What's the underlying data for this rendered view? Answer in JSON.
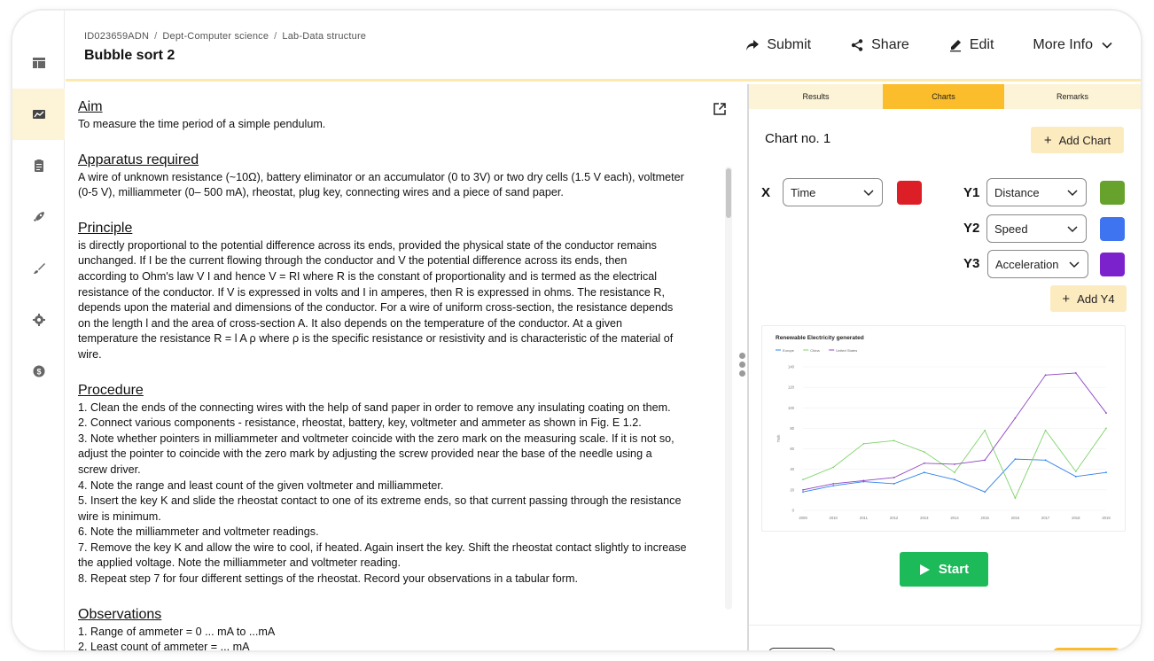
{
  "header": {
    "breadcrumbs": [
      "ID023659ADN",
      "Dept-Computer science",
      "Lab-Data structure"
    ],
    "title": "Bubble sort 2",
    "actions": {
      "submit": "Submit",
      "share": "Share",
      "edit": "Edit",
      "more_info": "More Info"
    }
  },
  "sidebar": {
    "items": [
      "layout-icon",
      "chart-line-icon",
      "clipboard-icon",
      "rocket-icon",
      "brush-icon",
      "settings-icon",
      "dollar-icon"
    ],
    "active_index": 1
  },
  "content": {
    "aim": {
      "heading": "Aim",
      "text": "To measure the time period of a simple pendulum."
    },
    "apparatus": {
      "heading": "Apparatus required",
      "text": "A wire of unknown resistance (~10Ω), battery eliminator or an accumulator (0 to 3V) or two dry cells (1.5 V each), voltmeter\n(0-5 V), milliammeter (0– 500 mA), rheostat, plug key, connecting wires and a piece of sand paper."
    },
    "principle": {
      "heading": "Principle",
      "text": "is directly proportional to the potential difference across its ends, provided the physical state of the conductor remains\nunchanged. If I be the current flowing through the conductor and V the potential difference across its ends, then\naccording to Ohm's law V I    and hence V = RI where R is the constant of proportionality and is termed as the electrical\nresistance of the conductor. If V is expressed in volts and I in amperes, then R is expressed in ohms. The resistance R,\ndepends upon the material and dimensions of the conductor. For a wire of uniform cross-section, the resistance depends\non the length l and the area of cross-section A. It also depends on the temperature of the conductor. At a given\ntemperature the resistance R = l A ρ where ρ is the specific resistance or resistivity and is characteristic of the material of\nwire."
    },
    "procedure": {
      "heading": "Procedure",
      "text": "1. Clean the ends of the connecting wires with the help of sand paper in order to remove any insulating coating on them.\n2. Connect various components - resistance, rheostat, battery, key, voltmeter and ammeter as shown in Fig. E 1.2.\n3. Note whether pointers in milliammeter and voltmeter coincide with the zero mark on the measuring scale. If it is not so,\nadjust the pointer to coincide with the zero mark by adjusting the screw provided near the base of the needle using a\nscrew driver.\n4. Note the range and least count of the given voltmeter and milliammeter.\n5. Insert the key K and slide the rheostat contact to one of its extreme ends, so that current passing through the resistance\nwire is minimum.\n6. Note the milliammeter and voltmeter readings.\n7. Remove the key K and allow the wire to cool, if heated. Again insert the key. Shift the rheostat contact slightly to increase\nthe applied voltage. Note the milliammeter and voltmeter reading.\n8. Repeat step 7 for four different settings of the rheostat. Record your observations in a tabular form."
    },
    "observations": {
      "heading": "Observations",
      "text": "1. Range of ammeter = 0 ... mA to ...mA\n2. Least count of ammeter = ... mA"
    }
  },
  "panel": {
    "tabs": [
      "Results",
      "Charts",
      "Remarks"
    ],
    "active_tab": 1,
    "chart_title": "Chart no. 1",
    "add_chart": "Add Chart",
    "add_y4": "Add Y4",
    "start": "Start",
    "x": {
      "label": "X",
      "value": "Time",
      "color": "#dc1f26"
    },
    "y1": {
      "label": "Y1",
      "value": "Distance",
      "color": "#67a22d"
    },
    "y2": {
      "label": "Y2",
      "value": "Speed",
      "color": "#3f74f0"
    },
    "y3": {
      "label": "Y3",
      "value": "Acceleration",
      "color": "#7b22cc"
    }
  },
  "chart_data": {
    "type": "line",
    "title": "Renewable Electricity generated",
    "ylabel": "TWh",
    "xlabel": "",
    "x": [
      2009,
      2010,
      2011,
      2012,
      2013,
      2014,
      2015,
      2016,
      2017,
      2018,
      2019
    ],
    "ylim": [
      0,
      140
    ],
    "yticks": [
      0,
      20,
      40,
      60,
      80,
      100,
      120,
      140
    ],
    "legend": "top-left",
    "grid": true,
    "series": [
      {
        "name": "Europe",
        "color": "#2f80ed",
        "values": [
          18,
          24,
          28,
          26,
          37,
          30,
          18,
          50,
          49,
          33,
          37
        ]
      },
      {
        "name": "China",
        "color": "#7fd36b",
        "values": [
          30,
          42,
          65,
          68,
          57,
          37,
          78,
          12,
          78,
          38,
          80
        ]
      },
      {
        "name": "United States",
        "color": "#8e44c4",
        "values": [
          20,
          26,
          29,
          32,
          46,
          45,
          49,
          90,
          132,
          134,
          95
        ]
      }
    ]
  }
}
